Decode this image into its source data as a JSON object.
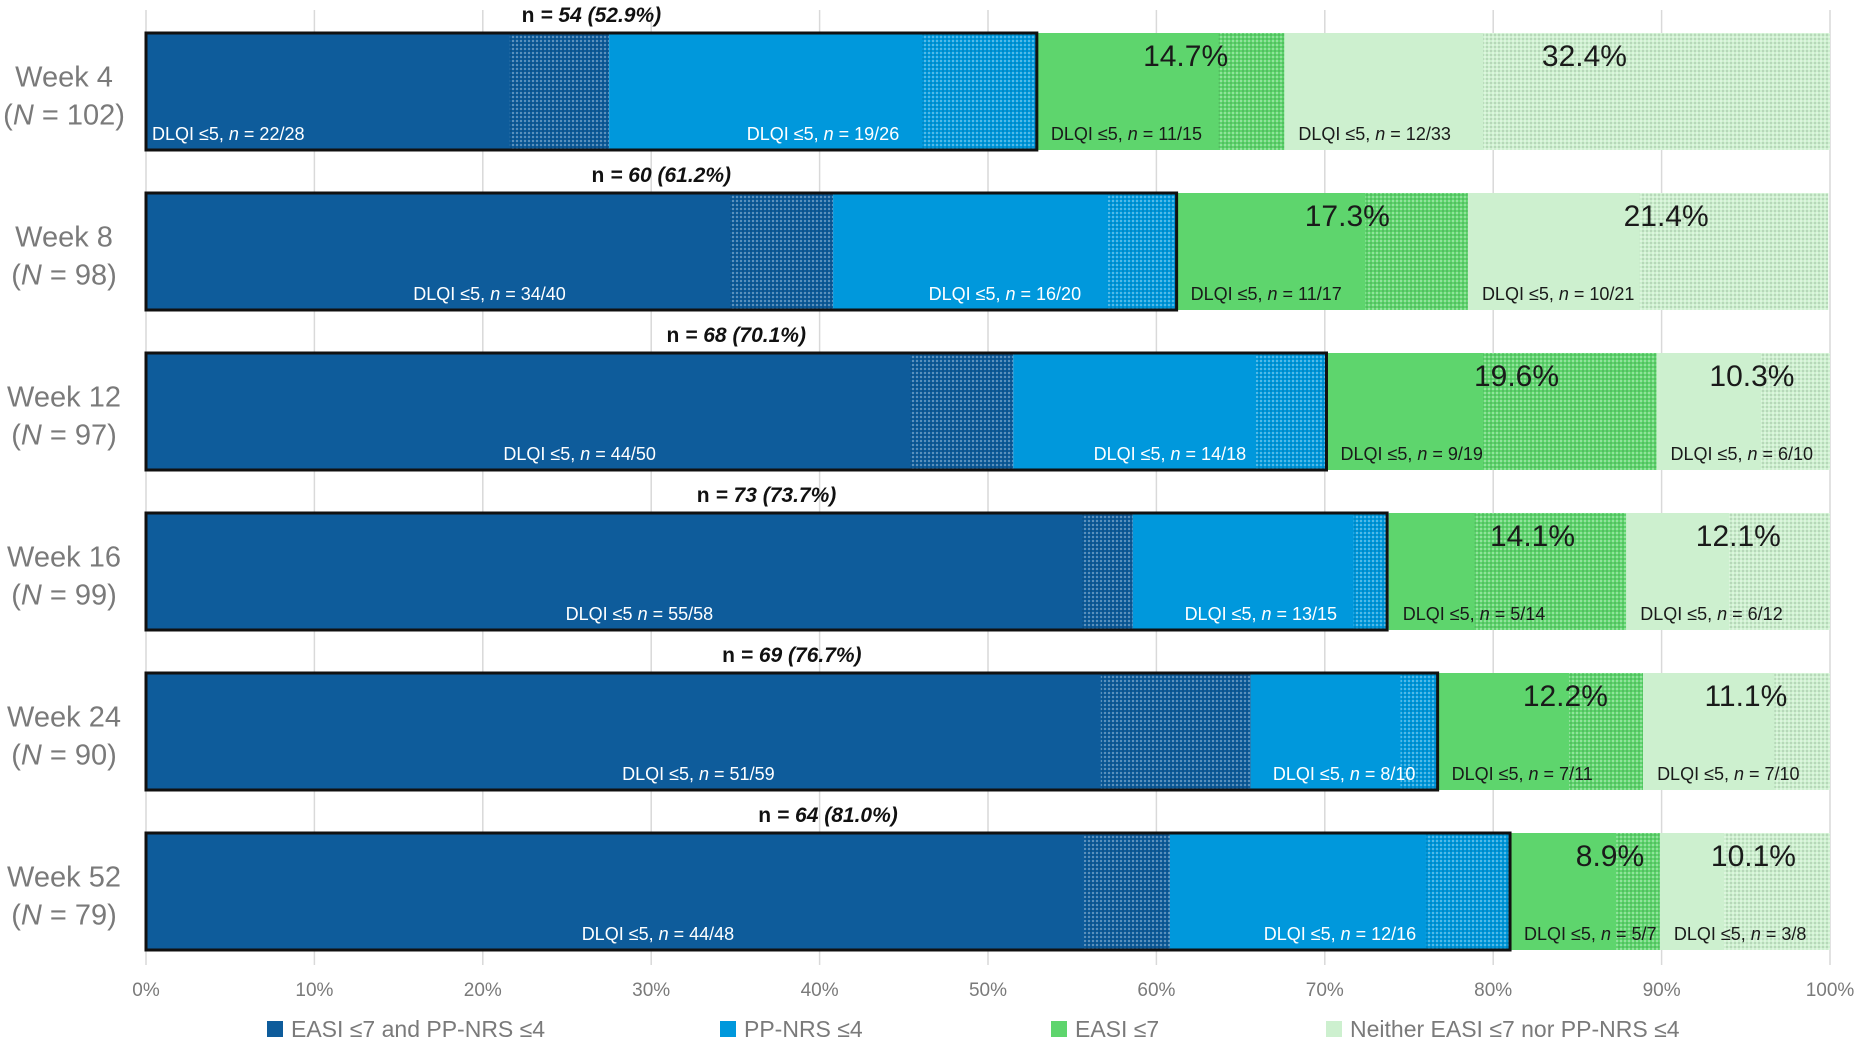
{
  "chart_data": {
    "type": "bar",
    "orientation": "horizontal",
    "stacked": true,
    "grid": true,
    "legend_position": "bottom",
    "xlim": [
      0,
      100
    ],
    "x_ticks": [
      "0%",
      "10%",
      "20%",
      "30%",
      "40%",
      "50%",
      "60%",
      "70%",
      "80%",
      "90%",
      "100%"
    ],
    "categories": [
      {
        "label": "Week 4",
        "n_label": [
          "(",
          "N",
          " = 102)"
        ]
      },
      {
        "label": "Week 8",
        "n_label": [
          "(",
          "N",
          " = 98)"
        ]
      },
      {
        "label": "Week 12",
        "n_label": [
          "(",
          "N",
          " = 97)"
        ]
      },
      {
        "label": "Week 16",
        "n_label": [
          "(",
          "N",
          " = 99)"
        ]
      },
      {
        "label": "Week 24",
        "n_label": [
          "(",
          "N",
          " = 90)"
        ]
      },
      {
        "label": "Week 52",
        "n_label": [
          "(",
          "N",
          " = 79)"
        ]
      }
    ],
    "series": [
      {
        "name": "EASI ≤7 and PP-NRS ≤4",
        "color": "#0e5c9b",
        "values": [
          27.5,
          40.8,
          51.5,
          58.6,
          65.6,
          60.8
        ],
        "dlqi_share": [
          21.6,
          34.7,
          45.4,
          55.6,
          56.7,
          55.7
        ],
        "labels": [
          [
            "DLQI ≤5, ",
            "n",
            " = 22/28"
          ],
          [
            "DLQI ≤5, ",
            "n",
            " = 34/40"
          ],
          [
            "DLQI ≤5, ",
            "n",
            " = 44/50"
          ],
          [
            "DLQI ≤5 ",
            "n",
            " = 55/58"
          ],
          [
            "DLQI ≤5, ",
            "n",
            " = 51/59"
          ],
          [
            "DLQI ≤5, ",
            "n",
            " = 44/48"
          ]
        ]
      },
      {
        "name": "PP-NRS ≤4",
        "color": "#0098dc",
        "values": [
          25.4,
          20.4,
          18.6,
          15.2,
          11.1,
          20.2
        ],
        "dlqi_share": [
          18.6,
          16.3,
          14.4,
          13.1,
          8.9,
          15.2
        ],
        "labels": [
          [
            "DLQI ≤5, ",
            "n",
            " = 19/26"
          ],
          [
            "DLQI ≤5, ",
            "n",
            " = 16/20"
          ],
          [
            "DLQI ≤5, ",
            "n",
            " = 14/18"
          ],
          [
            "DLQI ≤5, ",
            "n",
            " = 13/15"
          ],
          [
            "DLQI ≤5, ",
            "n",
            " = 8/10"
          ],
          [
            "DLQI ≤5, ",
            "n",
            " = 12/16"
          ]
        ]
      },
      {
        "name": "EASI ≤7",
        "color": "#5ed56d",
        "values": [
          14.7,
          17.3,
          19.6,
          14.1,
          12.2,
          8.9
        ],
        "dlqi_share": [
          10.8,
          11.2,
          9.3,
          5.1,
          7.8,
          6.3
        ],
        "pct_labels": [
          "14.7%",
          "17.3%",
          "19.6%",
          "14.1%",
          "12.2%",
          "8.9%"
        ],
        "labels": [
          [
            "DLQI ≤5, ",
            "n",
            " = 11/15"
          ],
          [
            "DLQI ≤5, ",
            "n",
            " = 11/17"
          ],
          [
            "DLQI ≤5, ",
            "n",
            " = 9/19"
          ],
          [
            "DLQI ≤5, ",
            "n",
            " = 5/14"
          ],
          [
            "DLQI ≤5, ",
            "n",
            " = 7/11"
          ],
          [
            "DLQI ≤5, ",
            "n",
            " = 5/7"
          ]
        ]
      },
      {
        "name": "Neither EASI ≤7 nor PP-NRS ≤4",
        "color": "#cdf0cf",
        "values": [
          32.4,
          21.4,
          10.3,
          12.1,
          11.1,
          10.1
        ],
        "dlqi_share": [
          11.8,
          10.2,
          6.2,
          6.1,
          7.8,
          3.8
        ],
        "pct_labels": [
          "32.4%",
          "21.4%",
          "10.3%",
          "12.1%",
          "11.1%",
          "10.1%"
        ],
        "labels": [
          [
            "DLQI ≤5, ",
            "n",
            " = 12/33"
          ],
          [
            "DLQI ≤5, ",
            "n",
            " = 10/21"
          ],
          [
            "DLQI ≤5, ",
            "n",
            " = 6/10"
          ],
          [
            "DLQI ≤5, ",
            "n",
            " = 6/12"
          ],
          [
            "DLQI ≤5, ",
            "n",
            " = 7/10"
          ],
          [
            "DLQI ≤5, ",
            "n",
            " = 3/8"
          ]
        ]
      }
    ],
    "outlined_totals": [
      {
        "value": 52.9,
        "label": [
          "n",
          " = 54 (52.9%)"
        ]
      },
      {
        "value": 61.2,
        "label": [
          "n",
          " = 60 (61.2%)"
        ]
      },
      {
        "value": 70.1,
        "label": [
          "n",
          " = 68 (70.1%)"
        ]
      },
      {
        "value": 73.7,
        "label": [
          "n",
          " = 73 (73.7%)"
        ]
      },
      {
        "value": 76.7,
        "label": [
          "n",
          " = 69 (76.7%)"
        ]
      },
      {
        "value": 81.0,
        "label": [
          "n",
          " = 64 (81.0%)"
        ]
      }
    ]
  }
}
